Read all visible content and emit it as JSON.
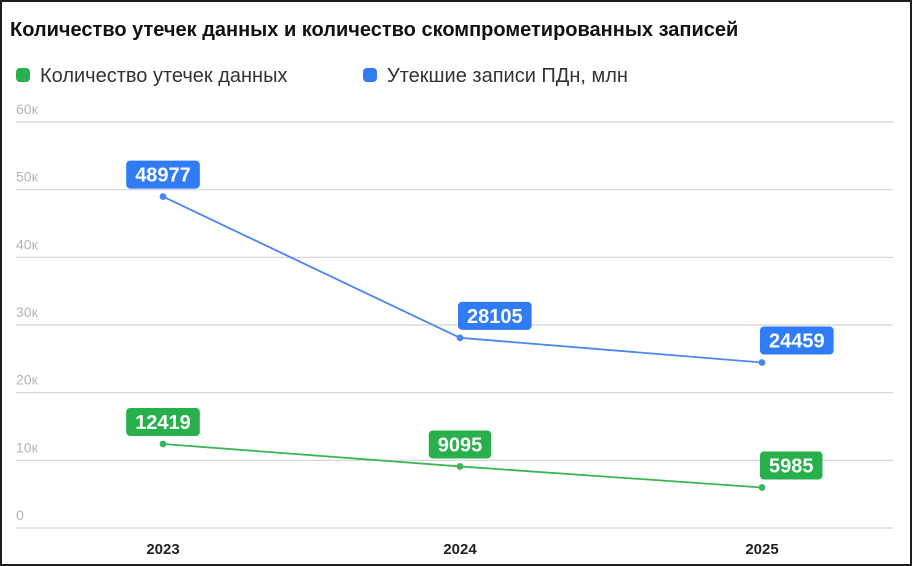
{
  "chart_data": {
    "type": "line",
    "title": "Количество утечек данных и количество скомпрометированных записей",
    "xlabel": "",
    "ylabel": "",
    "categories": [
      "2023",
      "2024",
      "2025"
    ],
    "ylim": [
      0,
      60000
    ],
    "yticks": [
      0,
      10000,
      20000,
      30000,
      40000,
      50000,
      60000
    ],
    "ytick_labels": [
      "0",
      "10к",
      "20к",
      "30к",
      "40к",
      "50к",
      "60к"
    ],
    "grid": true,
    "legend": "top-left",
    "series": [
      {
        "name": "Количество утечек данных",
        "color": "#27b04b",
        "line_color": "#3bb656",
        "values": [
          12419,
          9095,
          5985
        ],
        "labels": [
          "12419",
          "9095",
          "5985"
        ]
      },
      {
        "name": "Утекшие записи ПДн, млн",
        "color": "#2f7cf6",
        "line_color": "#4a87f2",
        "values": [
          48977,
          28105,
          24459
        ],
        "labels": [
          "48977",
          "28105",
          "24459"
        ]
      }
    ]
  }
}
